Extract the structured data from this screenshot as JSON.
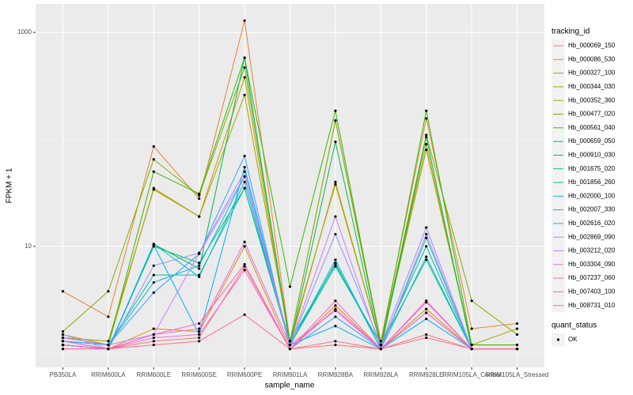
{
  "chart_data": {
    "type": "line",
    "x_label": "sample_name",
    "y_label": "FPKM + 1",
    "categories": [
      "PB350LA",
      "RRIM600LA",
      "RRIM600LE",
      "RRIM600SE",
      "RRIM600PE",
      "RRIM901LA",
      "RRIM928BA",
      "RRIM928LA",
      "RRIM928LE",
      "RRIM105LA_Control",
      "RRIM105LA_Stressed"
    ],
    "log_y": true,
    "ylim": [
      0.74,
      1845
    ],
    "yticks": [
      10,
      1000
    ],
    "grid": true,
    "legend_title": "tracking_id",
    "legend_position": "right",
    "point_legend_title": "quant_status",
    "point_legend_entries": [
      "OK"
    ],
    "point_color": "#000000",
    "series": [
      {
        "name": "Hb_000069_150",
        "color": "#F8766D",
        "values": [
          1.2,
          1.1,
          1.3,
          1.4,
          6.5,
          1.1,
          1.2,
          1.1,
          1.5,
          1.1,
          1.1
        ]
      },
      {
        "name": "Hb_000086_530",
        "color": "#EA8331",
        "values": [
          3.8,
          2.2,
          86,
          28,
          1290,
          1.3,
          150,
          1.3,
          157,
          1.7,
          1.9
        ]
      },
      {
        "name": "Hb_000327_100",
        "color": "#D89000",
        "values": [
          1.3,
          1.1,
          1.7,
          1.6,
          10,
          1.1,
          2.8,
          1.1,
          2.6,
          1.1,
          1.1
        ]
      },
      {
        "name": "Hb_000344_030",
        "color": "#C09B00",
        "values": [
          1.5,
          1.2,
          35,
          19,
          380,
          1.2,
          40,
          1.2,
          90,
          1.2,
          1.2
        ]
      },
      {
        "name": "Hb_000352_360",
        "color": "#A3A500",
        "values": [
          1.4,
          1.3,
          34,
          19,
          260,
          1.3,
          38,
          1.2,
          80,
          1.2,
          1.7
        ]
      },
      {
        "name": "Hb_000477_020",
        "color": "#7CAE00",
        "values": [
          1.6,
          3.8,
          65,
          30,
          470,
          1.3,
          150,
          1.2,
          110,
          3.1,
          1.5
        ]
      },
      {
        "name": "Hb_000561_040",
        "color": "#39B600",
        "values": [
          1.3,
          1.2,
          50,
          31,
          580,
          4.2,
          185,
          1.2,
          185,
          1.2,
          1.2
        ]
      },
      {
        "name": "Hb_000659_050",
        "color": "#00BB4E",
        "values": [
          1.2,
          1.1,
          10.5,
          6.2,
          580,
          1.2,
          95,
          1.1,
          105,
          1.1,
          1.1
        ]
      },
      {
        "name": "Hb_000910_030",
        "color": "#00BF7D",
        "values": [
          1.2,
          1.1,
          10,
          7,
          35,
          1.2,
          6.5,
          1.2,
          7.5,
          1.1,
          1.1
        ]
      },
      {
        "name": "Hb_001675_020",
        "color": "#00C1A3",
        "values": [
          1.3,
          1.2,
          5.4,
          5.4,
          35,
          1.3,
          6.8,
          1.2,
          10,
          1.1,
          1.1
        ]
      },
      {
        "name": "Hb_001856_260",
        "color": "#00BFC4",
        "values": [
          1.2,
          1.1,
          10.5,
          5.2,
          40,
          1.2,
          7,
          1.1,
          12,
          1.1,
          1.1
        ]
      },
      {
        "name": "Hb_002000_100",
        "color": "#00BAE0",
        "values": [
          1.4,
          1.2,
          4.6,
          6.6,
          45,
          1.2,
          7.5,
          1.1,
          8,
          1.1,
          1.1
        ]
      },
      {
        "name": "Hb_002007_330",
        "color": "#00B0F6",
        "values": [
          1.2,
          1.1,
          10.3,
          1.5,
          55,
          1.2,
          1.8,
          1.1,
          2.1,
          1.1,
          1.1
        ]
      },
      {
        "name": "Hb_002616_020",
        "color": "#35A2FF",
        "values": [
          1.3,
          1.2,
          3.7,
          8.5,
          70,
          1.1,
          2.2,
          1.1,
          2.4,
          1.1,
          1.1
        ]
      },
      {
        "name": "Hb_002869_090",
        "color": "#9590FF",
        "values": [
          1.5,
          1.1,
          6.6,
          8.7,
          50,
          1.2,
          13,
          1.2,
          15,
          1.1,
          1.1
        ]
      },
      {
        "name": "Hb_003212_020",
        "color": "#C77CFF",
        "values": [
          1.4,
          1.2,
          1.5,
          8.6,
          45,
          1.2,
          19,
          1.1,
          13,
          1.1,
          1.1
        ]
      },
      {
        "name": "Hb_003304_090",
        "color": "#E76BF3",
        "values": [
          1.3,
          1.1,
          1.5,
          1.7,
          11,
          1.2,
          2.5,
          1.1,
          3,
          1.1,
          1.1
        ]
      },
      {
        "name": "Hb_007237_060",
        "color": "#FA62DB",
        "values": [
          1.2,
          1.1,
          1.4,
          1.5,
          6,
          1.1,
          2.6,
          1.1,
          2.4,
          1.1,
          1.1
        ]
      },
      {
        "name": "Hb_007403_100",
        "color": "#FF62BC",
        "values": [
          1.1,
          1.1,
          1.5,
          1.9,
          6.8,
          1.1,
          3.1,
          1.1,
          3.1,
          1.1,
          1.1
        ]
      },
      {
        "name": "Hb_008731_010",
        "color": "#FF6C91",
        "values": [
          1.1,
          1.1,
          1.2,
          1.3,
          2.3,
          1.1,
          1.3,
          1.1,
          1.4,
          1.1,
          1.1
        ]
      }
    ]
  }
}
